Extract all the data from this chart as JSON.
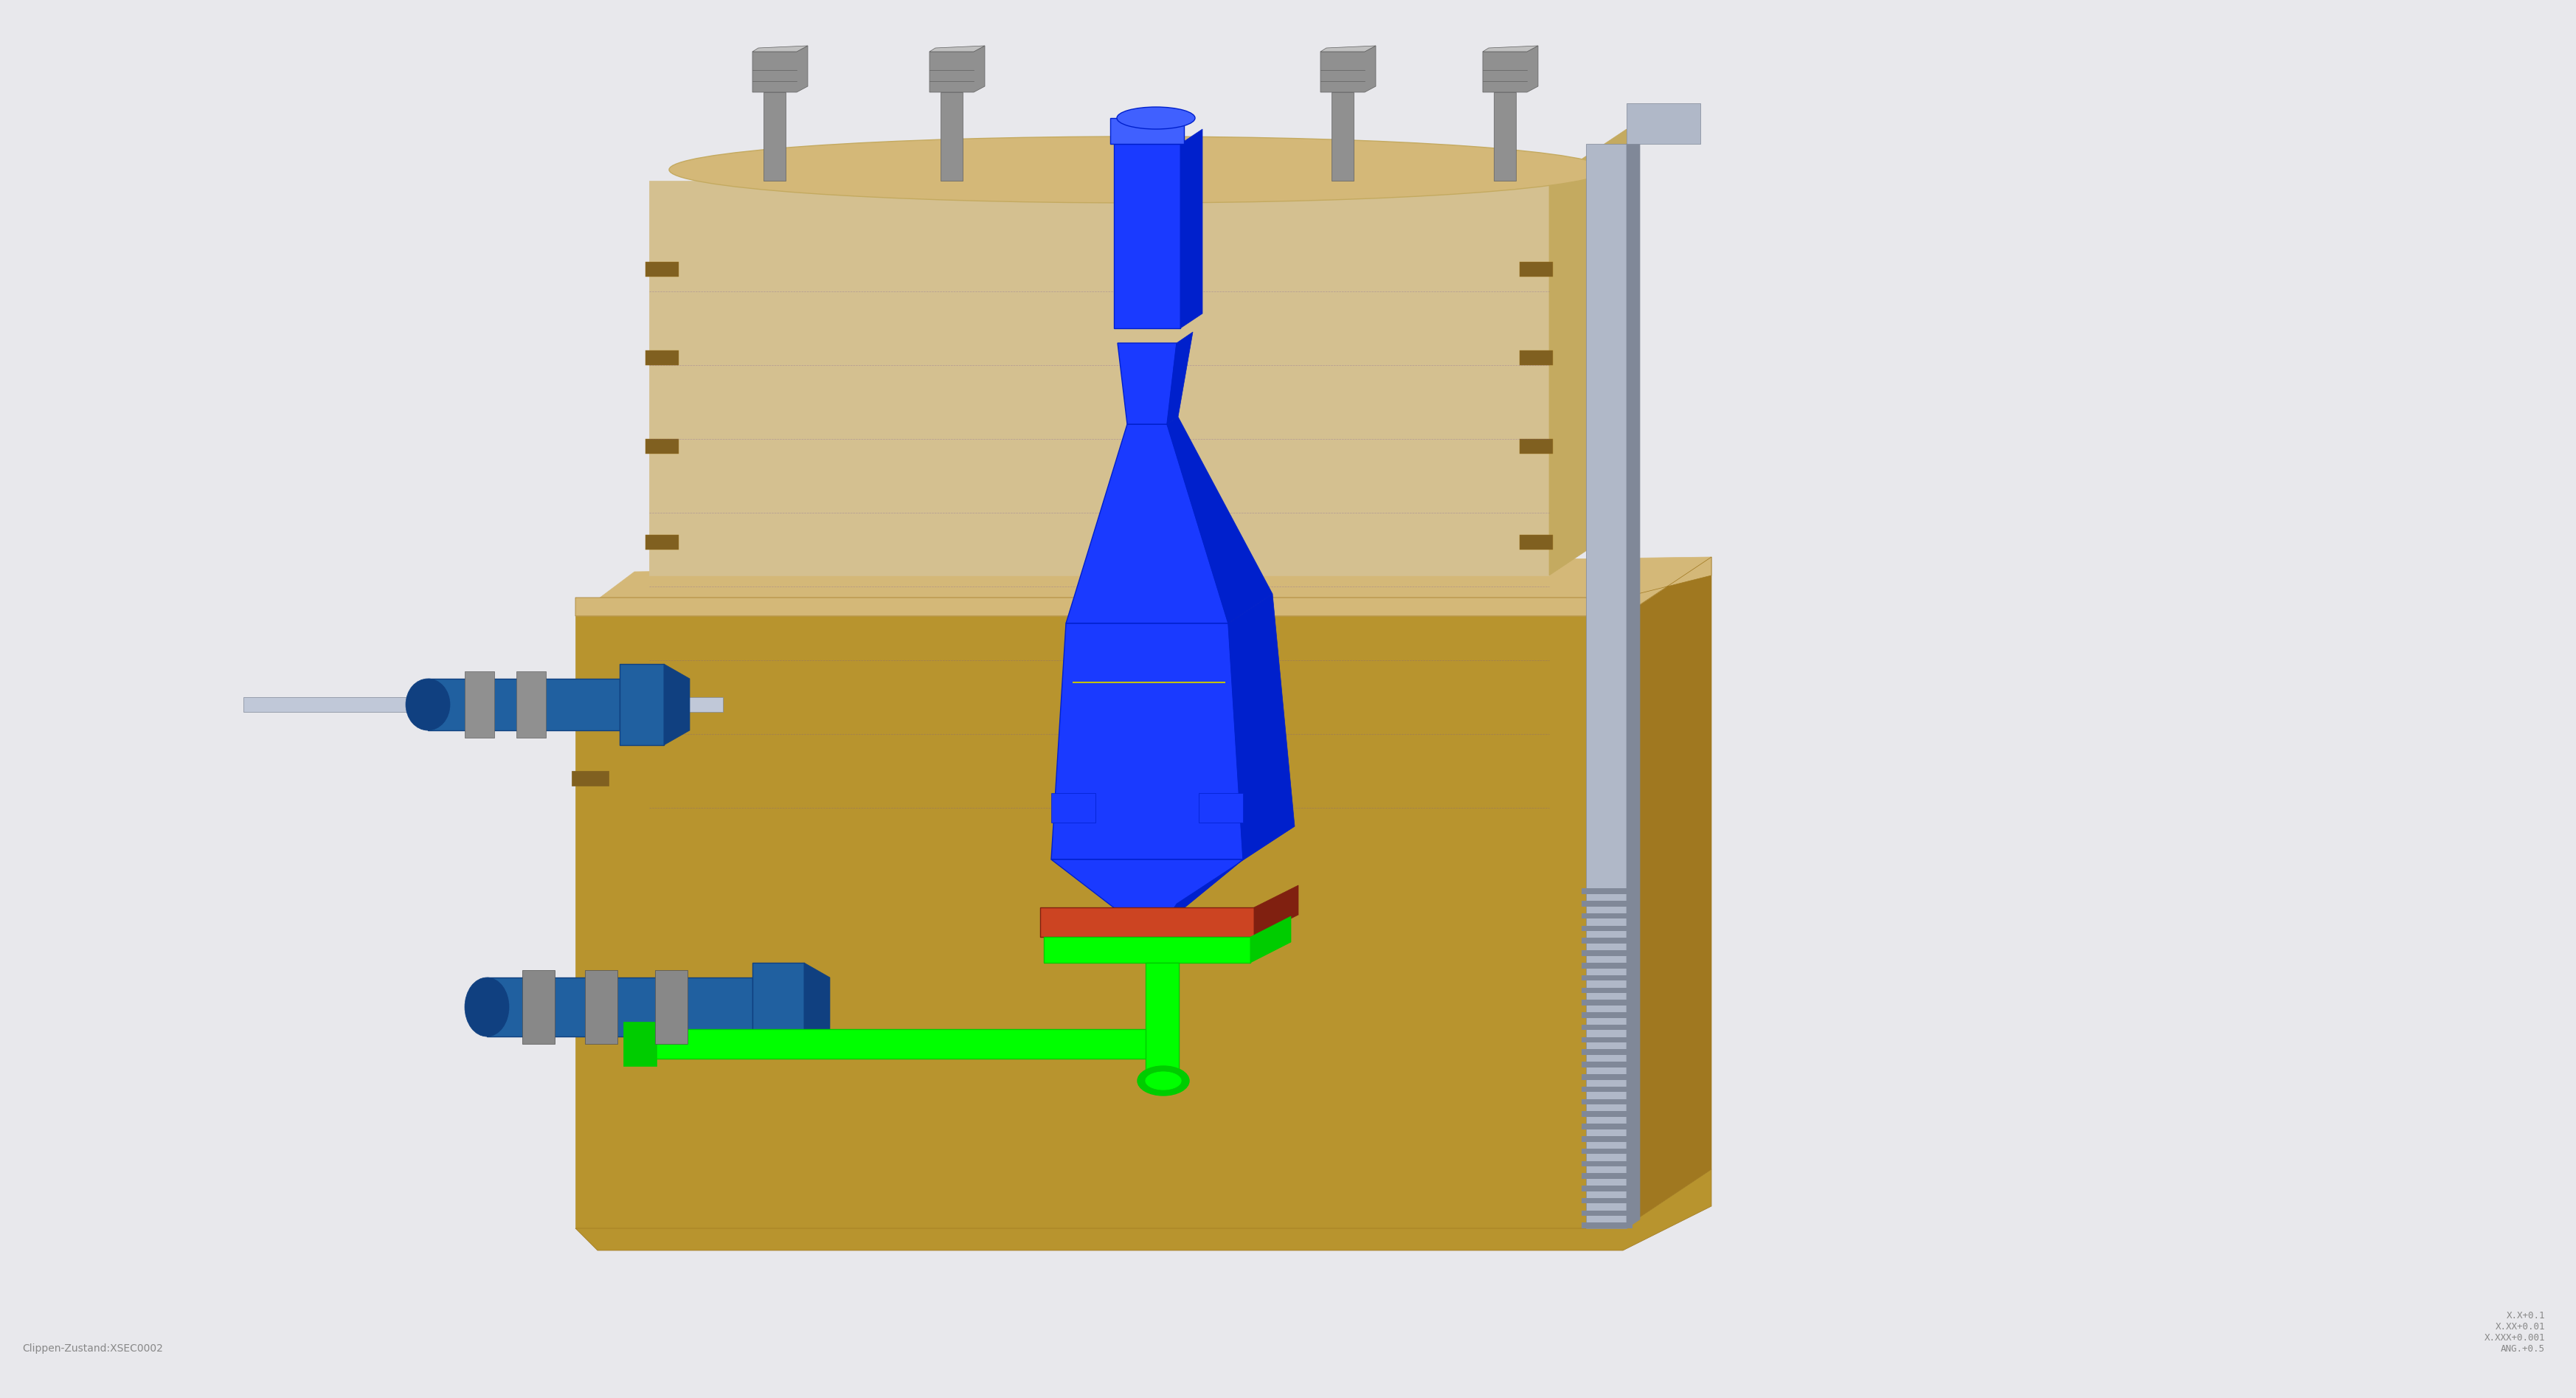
{
  "bg_color": "#e8e8ec",
  "watermark_text": "Clippen-Zustand:XSEC0002",
  "tolerance_text": "X.X+0.1\nX.XX+0.01\nX.XXX+0.001\nANG.+0.5",
  "body_outer_color": "#c8a84b",
  "body_inner_color": "#b8942e",
  "body_top_color": "#d4b878",
  "body_shadow_color": "#a07820",
  "upper_body_color": "#d4c090",
  "upper_body_side_color": "#c4aa60",
  "bolt_color": "#909090",
  "bolt_dark": "#606060",
  "bolt_top": "#c0c0c0",
  "blue_part_color": "#1a3aff",
  "blue_part_dark": "#0020cc",
  "blue_part_light": "#4060ff",
  "green_part_color": "#00ff00",
  "green_part_dark": "#00cc00",
  "red_part_color": "#cc4422",
  "steel_rod_color": "#b0b8c8",
  "steel_rod_dark": "#808898",
  "connector_teal": "#2060a0",
  "connector_teal_dark": "#104080",
  "wire_color": "#c0c8d8",
  "slot_color": "#806020",
  "nut_color": "#909090",
  "nut_dark": "#606060"
}
